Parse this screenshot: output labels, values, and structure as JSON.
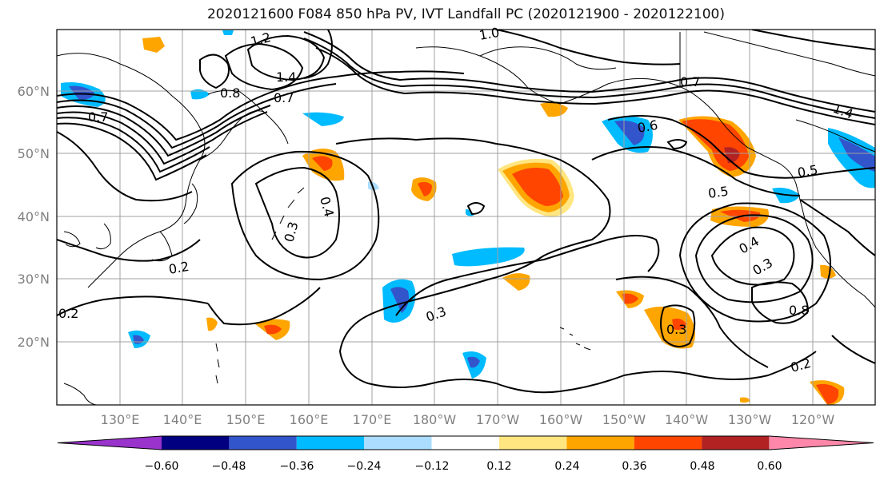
{
  "title": "2020121600 F084 850 hPa PV, IVT Landfall PC (2020121900 - 2020122100)",
  "lat_labels": [
    "60°N",
    "50°N",
    "40°N",
    "30°N",
    "20°N"
  ],
  "lon_labels": [
    "130°E",
    "140°E",
    "150°E",
    "160°E",
    "170°E",
    "180°W",
    "170°W",
    "160°W",
    "150°W",
    "140°W",
    "130°W",
    "120°W"
  ],
  "contour_labels": [
    "1.2",
    "1.4",
    "1.0",
    "0.8",
    "0.7",
    "0.7",
    "0.6",
    "0.5",
    "0.5",
    "0.4",
    "0.3",
    "0.3",
    "0.2",
    "0.2",
    "0.3",
    "0.4",
    "0.3",
    "0.8",
    "0.2",
    "0.7",
    "1.4"
  ],
  "colorbar": {
    "colors": [
      "#9933cc",
      "#000080",
      "#3355cc",
      "#00bbff",
      "#aaddff",
      "#ffffff",
      "#ffe680",
      "#ffa500",
      "#ff4500",
      "#b22222",
      "#ff88aa"
    ],
    "tick_labels": [
      "−0.60",
      "−0.48",
      "−0.36",
      "−0.24",
      "−0.12",
      "0.12",
      "0.24",
      "0.36",
      "0.48",
      "0.60"
    ]
  }
}
